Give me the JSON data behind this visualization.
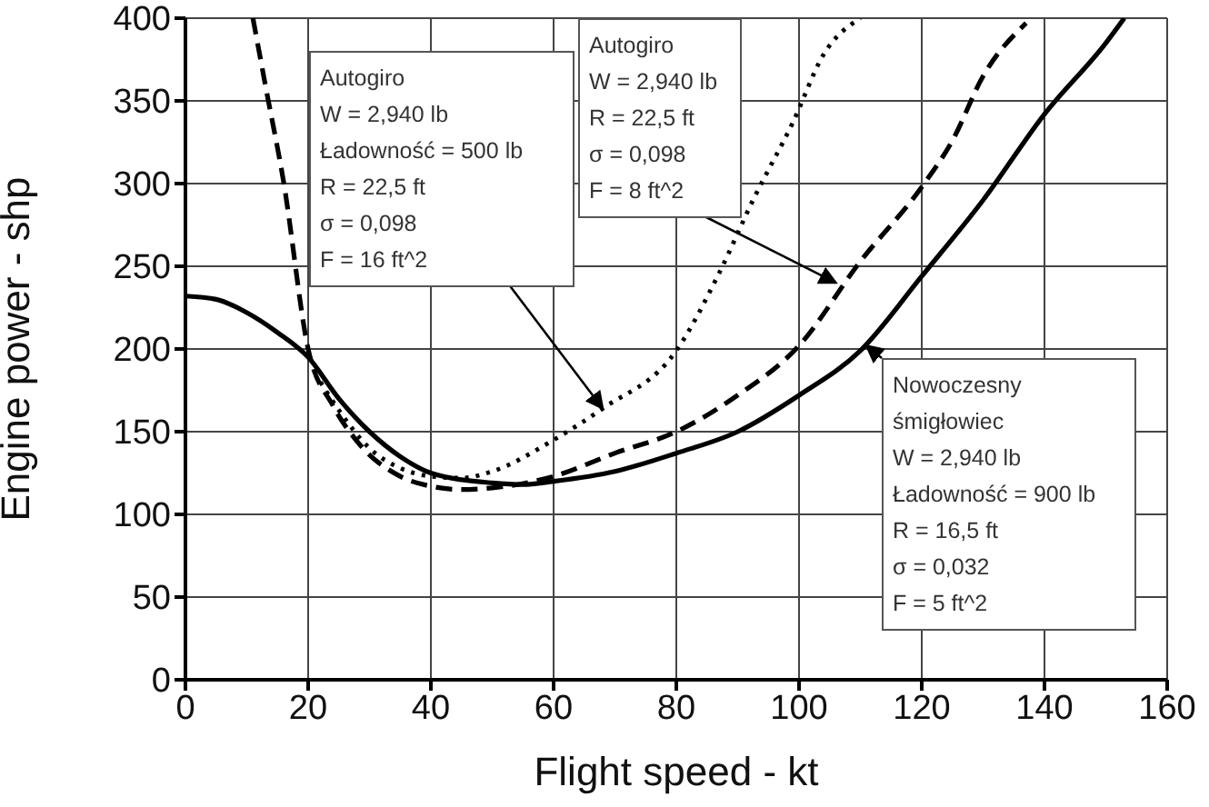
{
  "chart_data": {
    "type": "line",
    "xlabel": "Flight speed - kt",
    "ylabel": "Engine power - shp",
    "xlim": [
      0,
      160
    ],
    "xticks": [
      0,
      20,
      40,
      60,
      80,
      100,
      120,
      140,
      160
    ],
    "ylim": [
      0,
      400
    ],
    "yticks": [
      0,
      50,
      100,
      150,
      200,
      250,
      300,
      350,
      400
    ],
    "grid": true,
    "series": [
      {
        "color": "#000000",
        "line_style": "dotted",
        "x": [
          22,
          25,
          30,
          35,
          40,
          45,
          50,
          60,
          68,
          80,
          87,
          92.5,
          99,
          104,
          110
        ],
        "values": [
          180,
          163,
          140,
          128,
          123,
          122,
          126,
          145,
          164,
          199,
          246,
          290,
          337,
          378,
          400
        ]
      },
      {
        "color": "#000000",
        "line_style": "dashed",
        "x": [
          11,
          13,
          16,
          20,
          24,
          28,
          35,
          40,
          45,
          50,
          60,
          70,
          80,
          90,
          100,
          110,
          120,
          125,
          130,
          137
        ],
        "values": [
          400,
          360,
          301,
          200,
          166,
          144,
          123,
          117,
          115,
          116,
          123,
          137,
          150,
          172,
          202,
          253,
          298,
          326,
          365,
          397
        ]
      },
      {
        "color": "#000000",
        "line_style": "solid",
        "x": [
          0,
          5,
          10,
          15,
          20,
          25,
          30,
          35,
          40,
          50,
          55,
          60,
          70,
          80,
          90,
          100,
          110,
          120,
          130,
          140,
          150,
          153
        ],
        "values": [
          232,
          230,
          222,
          210,
          195,
          170,
          150,
          135,
          125,
          119,
          118,
          120,
          126,
          137,
          150,
          172,
          199,
          244,
          290,
          342,
          385,
          400
        ]
      }
    ],
    "annotations": [
      {
        "text": "Autogiro\nW = 2,940 lb\nŁadowność = 500 lb\nR = 22,5 ft\nσ = 0,098\nF = 16 ft^2",
        "x": 68,
        "y": 164
      },
      {
        "text": "Autogiro\nW = 2,940 lb\nR = 22,5 ft\nσ = 0,098\nF = 8 ft^2",
        "x": 106,
        "y": 240
      },
      {
        "text": "Nowoczesny\nśmigłowiec\nW = 2,940 lb\nŁadowność = 900 lb\nR = 16,5 ft\nσ = 0,032\nF = 5 ft^2",
        "x": 111,
        "y": 202
      }
    ]
  }
}
